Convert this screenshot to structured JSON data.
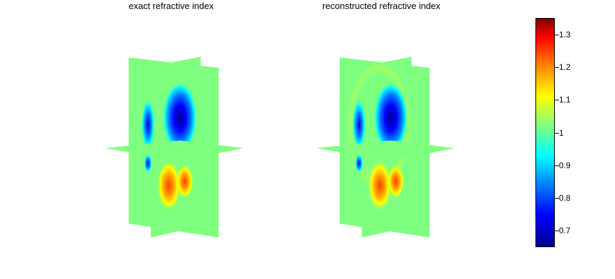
{
  "panels": [
    {
      "title": "exact refractive index"
    },
    {
      "title": "reconstructed refractive index"
    }
  ],
  "colorbar": {
    "min": 0.65,
    "max": 1.35,
    "colormap": "jet",
    "ticks": [
      "0.7",
      "0.8",
      "0.9",
      "1",
      "1.1",
      "1.2",
      "1.3"
    ]
  }
}
